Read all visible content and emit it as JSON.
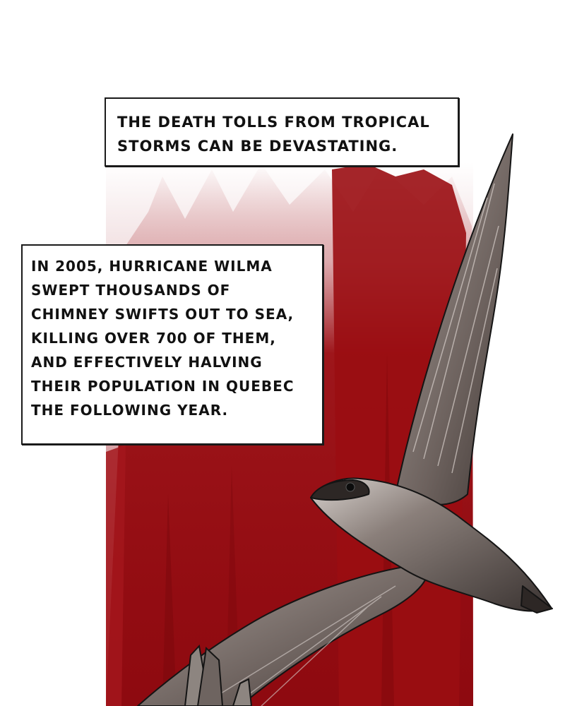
{
  "captions": {
    "top": {
      "lines": [
        "THE DEATH TOLLS FROM TROPICAL",
        "STORMS CAN BE DEVASTATING."
      ]
    },
    "main": {
      "lines": [
        "IN 2005, HURRICANE WILMA",
        "SWEPT THOUSANDS OF",
        "CHIMNEY SWIFTS OUT TO SEA,",
        "KILLING OVER 700 OF THEM,",
        "AND EFFECTIVELY HALVING",
        "THEIR POPULATION IN QUEBEC",
        "THE FOLLOWING YEAR."
      ]
    }
  },
  "colors": {
    "background": "#ffffff",
    "blood_red": "#9a0d12",
    "blood_red_light": "#c9848a",
    "bird_body": "#7a6f6b",
    "bird_dark": "#3a3331",
    "outline": "#141414"
  },
  "illustration": {
    "subject": "chimney-swift",
    "background": "red-paint-streaks"
  }
}
